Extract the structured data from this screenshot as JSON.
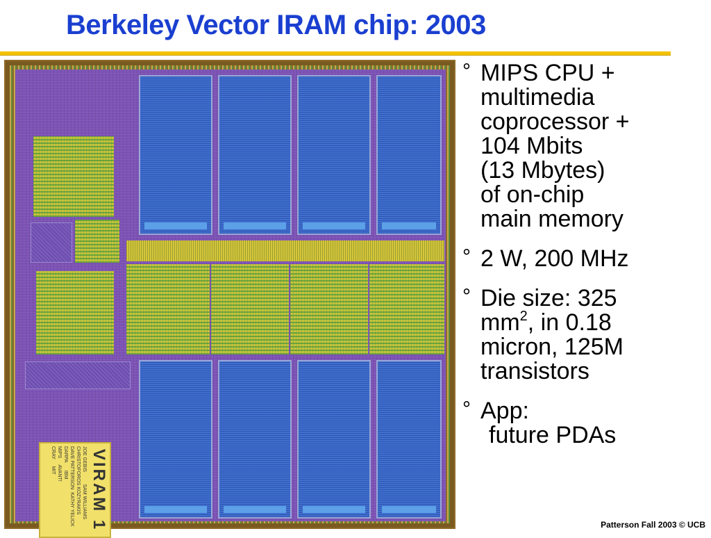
{
  "slide": {
    "title": "Berkeley Vector IRAM chip: 2003",
    "footer": "Patterson Fall 2003 © UCB",
    "accent_color": "#1a3fd0",
    "rule_color": "#f2c200"
  },
  "bullets": [
    {
      "marker": "°",
      "lines": [
        "MIPS CPU +",
        "multimedia",
        "coprocessor +",
        "104 Mbits",
        "(13 Mbytes)",
        "of on-chip",
        "main memory"
      ]
    },
    {
      "marker": "°",
      "lines": [
        "2 W, 200 MHz"
      ]
    },
    {
      "marker": "°",
      "lines_pre": "Die size: 325",
      "mm_base": "mm",
      "mm_sup": "2",
      "mm_rest": ", in 0.18",
      "lines_post": [
        "micron, 125M",
        "transistors"
      ]
    },
    {
      "marker": "°",
      "lines": [
        "App:",
        "future PDAs"
      ]
    }
  ],
  "die_photo": {
    "chip_name": "VIRAM 1",
    "credits": "JOE GEBIS         SAM WILLIAMS\nCHRISTOFOROS KOZYRAKIS\nDAVE PATTERSON  KATHY YELICK\nDARPA      IBM\nMIPS     AVANT!\nCRAY     MIT"
  }
}
